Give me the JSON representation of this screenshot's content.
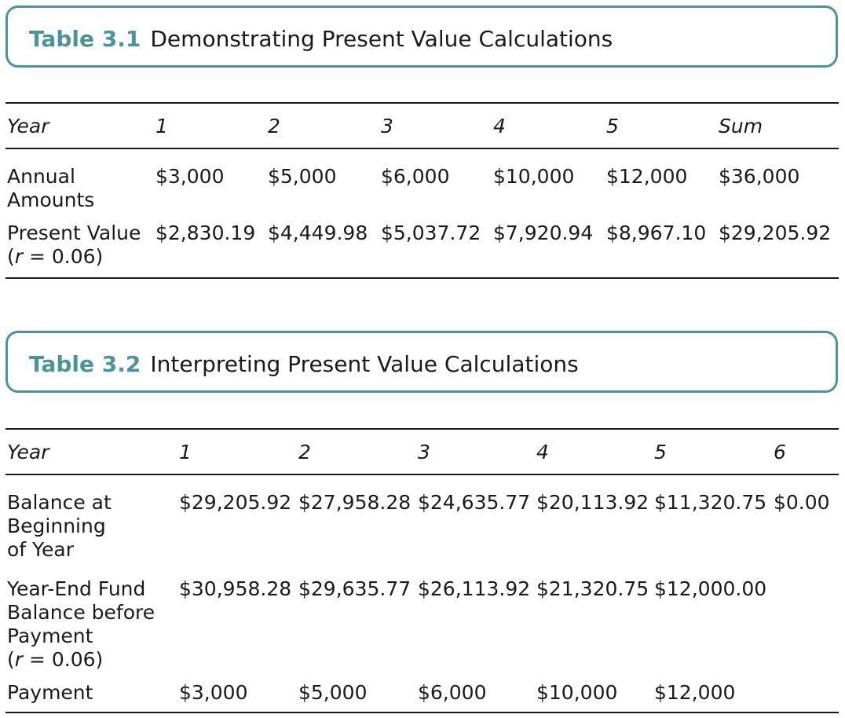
{
  "table1": {
    "label": "Table 3.1",
    "title": "Demonstrating Present Value Calculations",
    "header": [
      "Year",
      "1",
      "2",
      "3",
      "4",
      "5",
      "Sum"
    ],
    "rows": [
      {
        "label": "Annual Amounts",
        "values": [
          "$3,000",
          "$5,000",
          "$6,000",
          "$10,000",
          "$12,000",
          "$36,000"
        ]
      },
      {
        "label_main": "Present Value",
        "label_r": "r",
        "label_eq": " = 0.06)",
        "label_paren": "(",
        "values": [
          "$2,830.19",
          "$4,449.98",
          "$5,037.72",
          "$7,920.94",
          "$8,967.10",
          "$29,205.92"
        ]
      }
    ]
  },
  "table2": {
    "label": "Table 3.2",
    "title": "Interpreting Present Value Calculations",
    "header": [
      "Year",
      "1",
      "2",
      "3",
      "4",
      "5",
      "6"
    ],
    "rows": [
      {
        "label": "Balance at Beginning of Year",
        "values": [
          "$29,205.92",
          "$27,958.28",
          "$24,635.77",
          "$20,113.92",
          "$11,320.75",
          "$0.00"
        ]
      },
      {
        "label_main": "Year-End Fund Balance before Payment",
        "label_paren": "(",
        "label_r": "r",
        "label_eq": " = 0.06)",
        "values": [
          "$30,958.28",
          "$29,635.77",
          "$26,113.92",
          "$21,320.75",
          "$12,000.00"
        ]
      },
      {
        "label": "Payment",
        "values": [
          "$3,000",
          "$5,000",
          "$6,000",
          "$10,000",
          "$12,000"
        ]
      }
    ]
  }
}
